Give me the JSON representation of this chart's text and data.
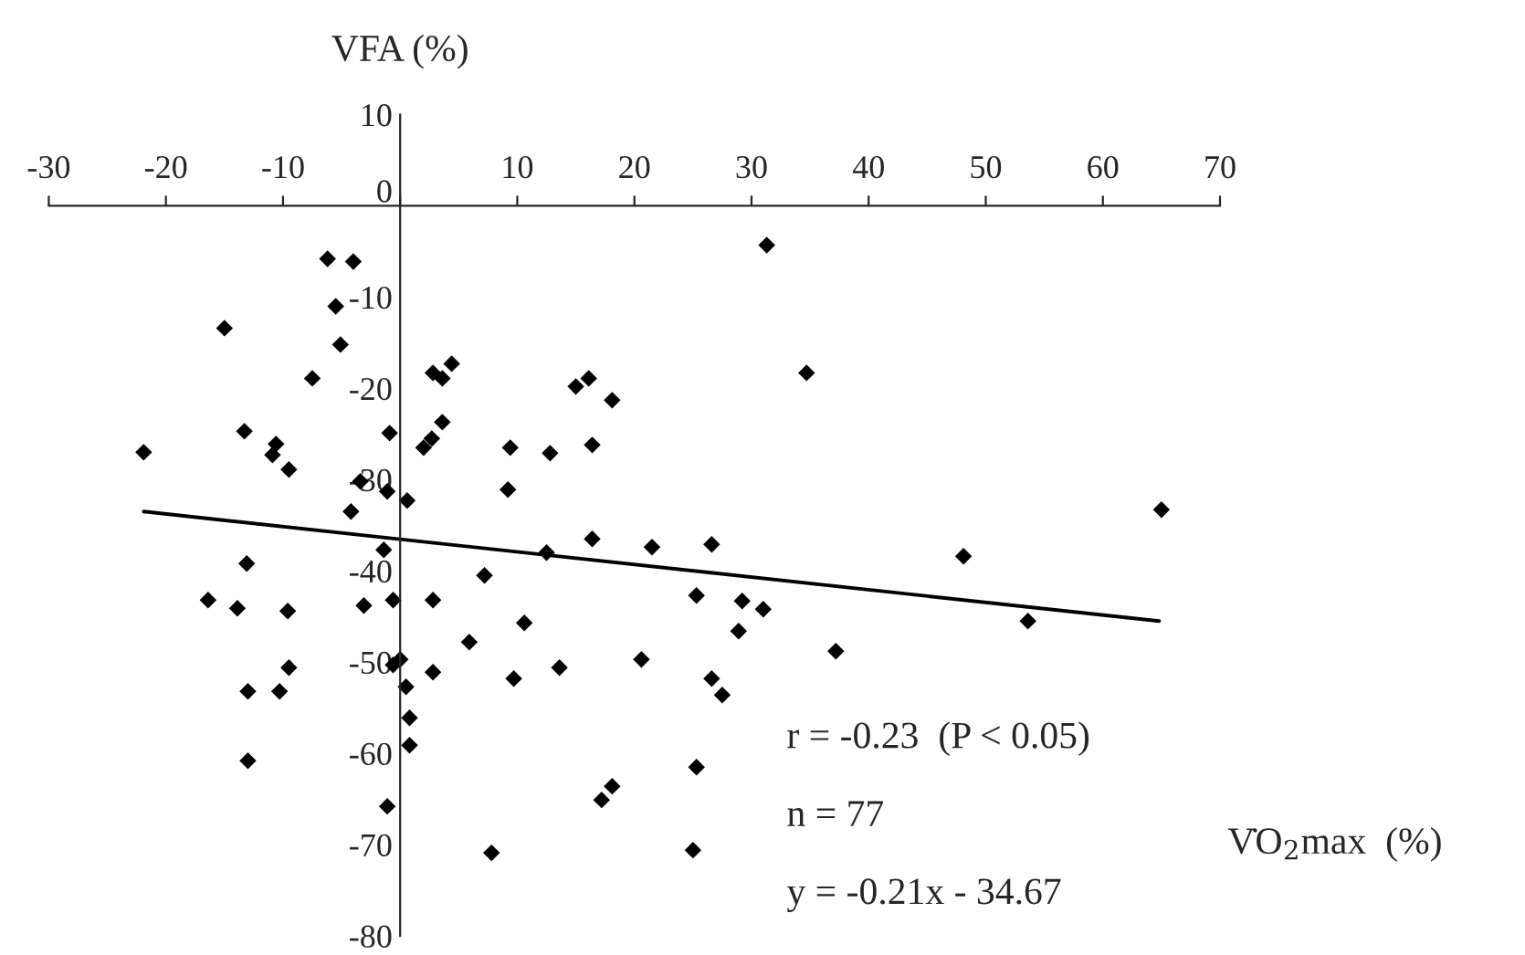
{
  "chart_data": {
    "type": "scatter",
    "xlabel": "V̇O$_{2}$max  (%)",
    "ylabel": "VFA (%)",
    "xlim": [
      -30,
      70
    ],
    "ylim": [
      -80,
      10
    ],
    "xticks": [
      -30,
      -20,
      -10,
      {
        "value": 0,
        "label": null
      },
      10,
      20,
      30,
      40,
      50,
      60,
      70
    ],
    "yticks": [
      10,
      0,
      -10,
      -20,
      -30,
      -40,
      -50,
      -60,
      -70,
      -80
    ],
    "legend": false,
    "series": [
      {
        "color": "#000000",
        "marker": "diamond",
        "x": [
          -6.2,
          -4.0,
          -5.5,
          -15.0,
          -5.1,
          -7.5,
          2.8,
          3.6,
          4.4,
          15.0,
          16.1,
          -13.3,
          -21.9,
          -10.6,
          -10.9,
          -9.5,
          -0.9,
          3.6,
          2.7,
          2.0,
          9.4,
          12.8,
          9.2,
          -3.4,
          -1.1,
          0.6,
          -4.2,
          -1.4,
          -13.1,
          7.2,
          12.5,
          -16.4,
          -13.9,
          -9.6,
          -3.1,
          -0.6,
          2.8,
          10.6,
          5.9,
          -9.5,
          -13.0,
          -10.3,
          -0.6,
          0.0,
          2.8,
          0.5,
          9.7,
          13.6,
          0.8,
          0.8,
          -13.0,
          -1.1,
          7.8,
          31.3,
          34.7,
          18.1,
          16.4,
          16.4,
          21.5,
          26.6,
          48.1,
          65.0,
          25.3,
          29.2,
          31.0,
          28.9,
          37.2,
          53.6,
          20.6,
          26.6,
          27.5,
          25.3,
          18.1,
          17.2,
          25.0
        ],
        "values": [
          -5.8,
          -6.1,
          -11.0,
          -13.4,
          -15.2,
          -18.9,
          -18.3,
          -18.9,
          -17.3,
          -19.8,
          -18.9,
          -24.7,
          -27.0,
          -26.1,
          -27.3,
          -28.9,
          -24.9,
          -23.7,
          -25.5,
          -26.5,
          -26.5,
          -27.1,
          -31.1,
          -30.2,
          -31.3,
          -32.3,
          -33.5,
          -37.7,
          -39.2,
          -40.5,
          -38.0,
          -43.2,
          -44.1,
          -44.4,
          -43.8,
          -43.2,
          -43.2,
          -45.7,
          -47.8,
          -50.6,
          -53.2,
          -53.2,
          -50.3,
          -49.7,
          -51.1,
          -52.7,
          -51.8,
          -50.6,
          -56.1,
          -59.1,
          -60.8,
          -65.8,
          -70.9,
          -4.3,
          -18.3,
          -21.3,
          -26.2,
          -36.5,
          -37.4,
          -37.1,
          -38.4,
          -33.3,
          -42.7,
          -43.3,
          -44.2,
          -46.6,
          -48.8,
          -45.5,
          -49.7,
          -51.8,
          -53.6,
          -61.5,
          -63.6,
          -65.1,
          -70.6
        ]
      },
      {
        "type": "line",
        "color": "#000000",
        "line_style": "solid",
        "x": [
          -21.9,
          64.8
        ],
        "values": [
          -33.5,
          -45.5
        ]
      }
    ],
    "annotations": [
      "r = -0.23  (P < 0.05)",
      "n = 77",
      "y = -0.21x - 34.67"
    ]
  }
}
